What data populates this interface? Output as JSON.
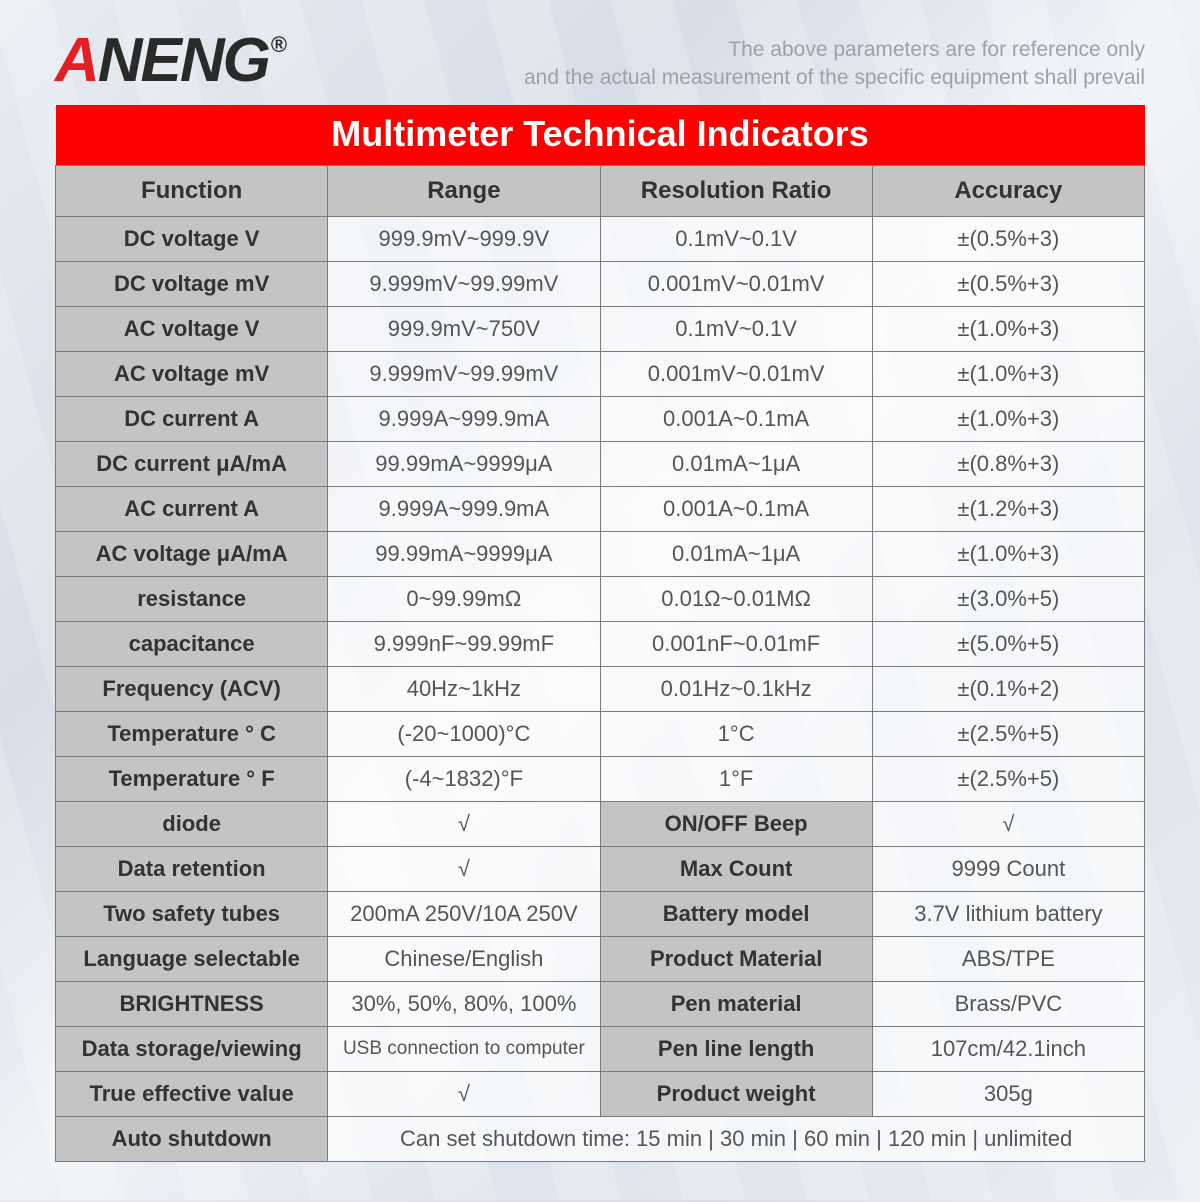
{
  "brand": {
    "part1": "A",
    "part2": "NENG",
    "reg": "®"
  },
  "disclaimer_line1": "The above parameters are for reference only",
  "disclaimer_line2": "and the actual measurement of the specific equipment shall prevail",
  "table": {
    "title": "Multimeter Technical Indicators",
    "headers": [
      "Function",
      "Range",
      "Resolution Ratio",
      "Accuracy"
    ],
    "spec_rows": [
      {
        "fn": "DC voltage V",
        "range": "999.9mV~999.9V",
        "res": "0.1mV~0.1V",
        "acc": "±(0.5%+3)"
      },
      {
        "fn": "DC voltage mV",
        "range": "9.999mV~99.99mV",
        "res": "0.001mV~0.01mV",
        "acc": "±(0.5%+3)"
      },
      {
        "fn": "AC voltage V",
        "range": "999.9mV~750V",
        "res": "0.1mV~0.1V",
        "acc": "±(1.0%+3)"
      },
      {
        "fn": "AC voltage mV",
        "range": "9.999mV~99.99mV",
        "res": "0.001mV~0.01mV",
        "acc": "±(1.0%+3)"
      },
      {
        "fn": "DC current A",
        "range": "9.999A~999.9mA",
        "res": "0.001A~0.1mA",
        "acc": "±(1.0%+3)"
      },
      {
        "fn": "DC current μA/mA",
        "range": "99.99mA~9999μA",
        "res": "0.01mA~1μA",
        "acc": "±(0.8%+3)"
      },
      {
        "fn": "AC current A",
        "range": "9.999A~999.9mA",
        "res": "0.001A~0.1mA",
        "acc": "±(1.2%+3)"
      },
      {
        "fn": "AC voltage μA/mA",
        "range": "99.99mA~9999μA",
        "res": "0.01mA~1μA",
        "acc": "±(1.0%+3)"
      },
      {
        "fn": "resistance",
        "range": "0~99.99mΩ",
        "res": "0.01Ω~0.01MΩ",
        "acc": "±(3.0%+5)"
      },
      {
        "fn": "capacitance",
        "range": "9.999nF~99.99mF",
        "res": "0.001nF~0.01mF",
        "acc": "±(5.0%+5)"
      },
      {
        "fn": "Frequency (ACV)",
        "range": "40Hz~1kHz",
        "res": "0.01Hz~0.1kHz",
        "acc": "±(0.1%+2)"
      },
      {
        "fn": "Temperature ° C",
        "range": "(-20~1000)°C",
        "res": "1°C",
        "acc": "±(2.5%+5)"
      },
      {
        "fn": "Temperature ° F",
        "range": "(-4~1832)°F",
        "res": "1°F",
        "acc": "±(2.5%+5)"
      }
    ],
    "pair_rows": [
      {
        "l1": "diode",
        "v1": "√",
        "l2": "ON/OFF Beep",
        "v2": "√"
      },
      {
        "l1": "Data retention",
        "v1": "√",
        "l2": "Max Count",
        "v2": "9999 Count"
      },
      {
        "l1": "Two safety tubes",
        "v1": "200mA 250V/10A 250V",
        "l2": "Battery model",
        "v2": "3.7V lithium battery"
      },
      {
        "l1": "Language selectable",
        "v1": "Chinese/English",
        "l2": "Product Material",
        "v2": "ABS/TPE"
      },
      {
        "l1": "BRIGHTNESS",
        "v1": "30%, 50%, 80%, 100%",
        "l2": "Pen material",
        "v2": "Brass/PVC"
      },
      {
        "l1": "Data storage/viewing",
        "v1": "USB connection to computer",
        "l2": "Pen line length",
        "v2": "107cm/42.1inch",
        "small": true
      },
      {
        "l1": "True effective value",
        "v1": "√",
        "l2": "Product weight",
        "v2": "305g"
      }
    ],
    "last_row": {
      "label": "Auto shutdown",
      "value": "Can set shutdown time: 15 min | 30 min | 60 min | 120 min | unlimited"
    }
  },
  "colors": {
    "title_bg": "#ff0000",
    "title_text": "#ffffff",
    "header_bg": "#c4c4c4",
    "border": "#7a7a7a",
    "logo_red": "#e31e24",
    "logo_dark": "#2a2a2a",
    "disclaimer": "#9aa2ab"
  }
}
